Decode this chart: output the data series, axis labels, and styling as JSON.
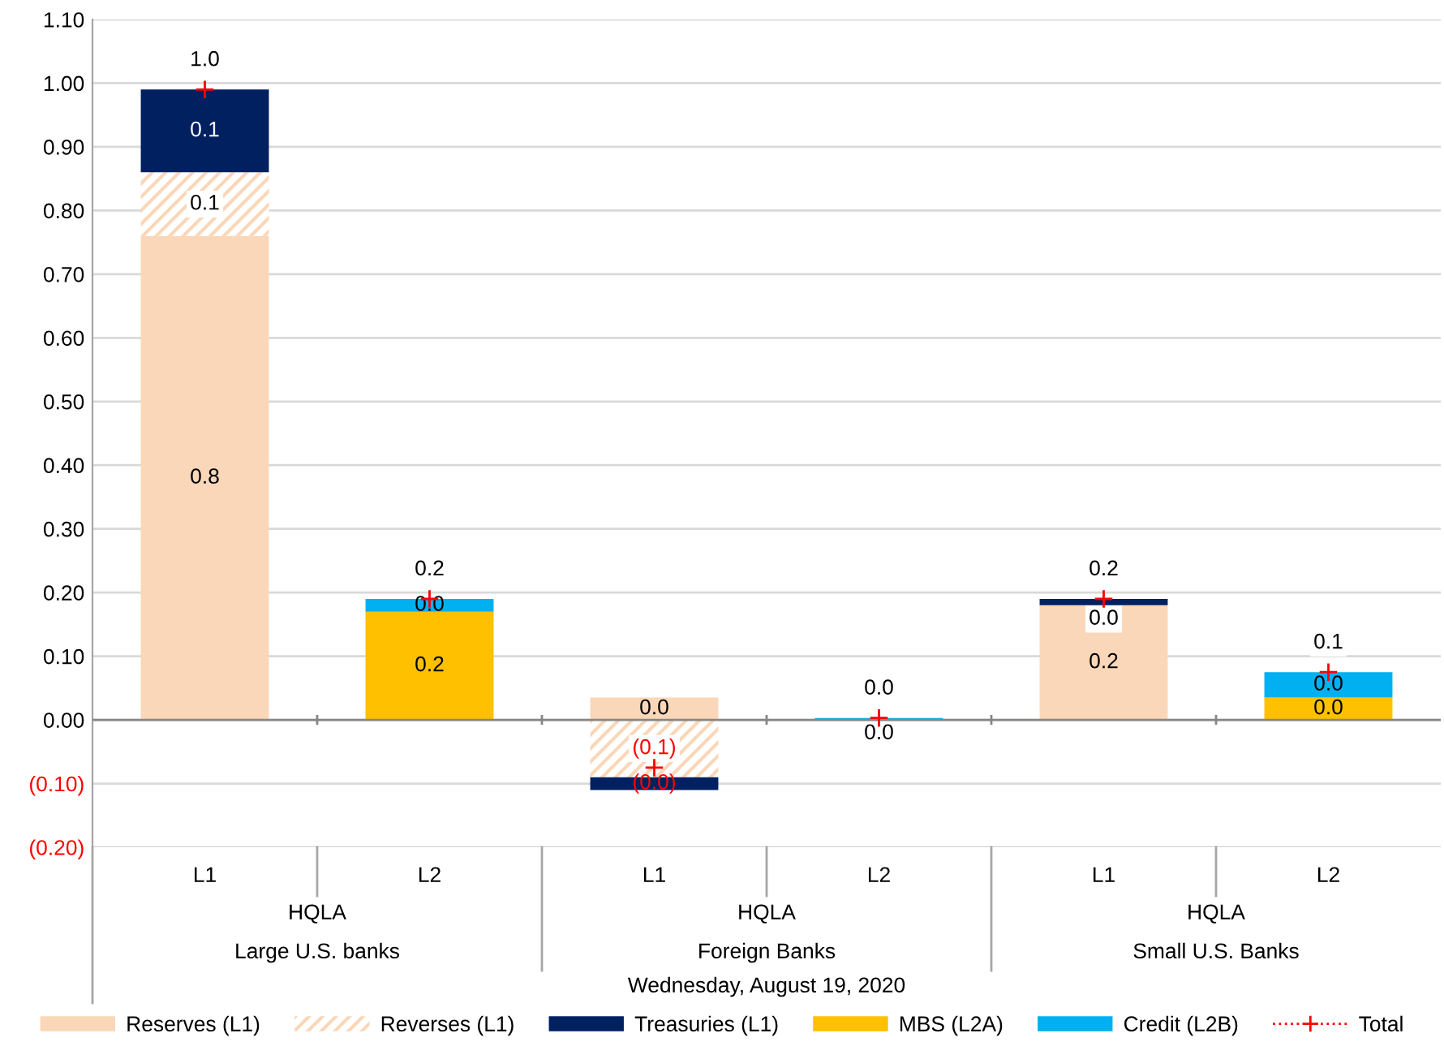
{
  "chart_data": {
    "type": "bar",
    "stacked": true,
    "categories": [
      "L1",
      "L2",
      "L1",
      "L2",
      "L1",
      "L2"
    ],
    "annotations": [
      "HQLA",
      "Large U.S. banks",
      "HQLA",
      "Foreign Banks",
      "HQLA",
      "Small U.S. Banks"
    ],
    "xlabel": "Wednesday, August 19, 2020",
    "series": [
      {
        "name": "Reserves (L1)",
        "color": "#fad7b8",
        "values": [
          0.76,
          null,
          0.035,
          null,
          0.18,
          null
        ],
        "value_labels": [
          "0.8",
          null,
          "0.0",
          null,
          "0.2",
          null
        ]
      },
      {
        "name": "Reverses (L1)",
        "color": "#fad7b8",
        "values": [
          0.1,
          null,
          -0.09,
          null,
          0.0,
          null
        ],
        "value_labels": [
          "0.1",
          null,
          "(0.1)",
          null,
          "0.0",
          null
        ]
      },
      {
        "name": "Treasuries (L1)",
        "color": "#002060",
        "values": [
          0.13,
          null,
          -0.02,
          null,
          0.01,
          null
        ],
        "value_labels": [
          "0.1",
          null,
          "(0.0)",
          null,
          null,
          null
        ]
      },
      {
        "name": "MBS (L2A)",
        "color": "#ffc000",
        "values": [
          null,
          0.17,
          null,
          null,
          null,
          0.035
        ],
        "value_labels": [
          null,
          "0.2",
          null,
          null,
          null,
          "0.0"
        ]
      },
      {
        "name": "Credit (L2B)",
        "color": "#00b0f0",
        "values": [
          null,
          0.02,
          null,
          0.003,
          null,
          0.04
        ],
        "value_labels": [
          null,
          "0.0",
          null,
          "0.0",
          null,
          "0.0"
        ]
      },
      {
        "name": "Total",
        "type": "scatter",
        "marker": "cross",
        "color": "#ff0000",
        "values": [
          0.99,
          0.19,
          -0.075,
          0.003,
          0.19,
          0.075
        ],
        "value_labels": [
          "1.0",
          "0.2",
          null,
          "0.0",
          "0.2",
          "0.1"
        ]
      }
    ],
    "ylim": [
      -0.2,
      1.1
    ],
    "yticks": [
      {
        "value": -0.2,
        "label": "(0.20)"
      },
      {
        "value": -0.1,
        "label": "(0.10)"
      },
      {
        "value": 0,
        "label": "0.00"
      },
      {
        "value": 0.1,
        "label": "0.10"
      },
      {
        "value": 0.2,
        "label": "0.20"
      },
      {
        "value": 0.3,
        "label": "0.30"
      },
      {
        "value": 0.4,
        "label": "0.40"
      },
      {
        "value": 0.5,
        "label": "0.50"
      },
      {
        "value": 0.6,
        "label": "0.60"
      },
      {
        "value": 0.7,
        "label": "0.70"
      },
      {
        "value": 0.8,
        "label": "0.80"
      },
      {
        "value": 0.9,
        "label": "0.90"
      },
      {
        "value": 1.0,
        "label": "1.00"
      },
      {
        "value": 1.1,
        "label": "1.10"
      }
    ],
    "grid": "y",
    "legend": "bottom"
  }
}
